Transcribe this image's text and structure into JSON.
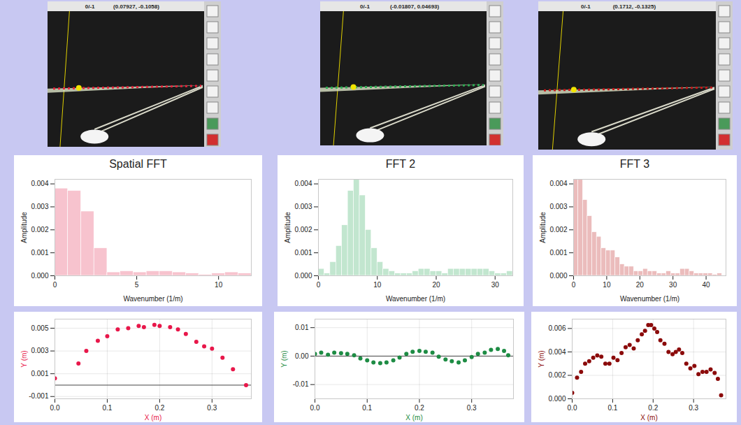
{
  "screenshots": [
    {
      "status": "0/-1",
      "cursor": "(0.07927, -0.1058)"
    },
    {
      "status": "0/-1",
      "cursor": "(-0.01807, 0.04693)"
    },
    {
      "status": "0/-1",
      "cursor": "(0.1712, -0.1325)"
    }
  ],
  "chart_data": [
    {
      "type": "histogram",
      "title": "Spatial FFT",
      "x_label": "Wavenumber (1/m)",
      "y_label": "Amplitude",
      "color": "#f7c3ce",
      "bins": [
        0,
        0.8,
        1.6,
        2.4,
        3.2,
        4,
        4.8,
        5.6,
        6.4,
        7.2,
        8,
        8.8,
        9.6,
        10.4,
        11.2,
        12
      ],
      "values": [
        0.0038,
        0.0037,
        0.0028,
        0.0012,
        0.00015,
        0.0002,
        0.00015,
        0.0002,
        0.0002,
        0.00015,
        0.0001,
        5e-05,
        0.0001,
        0.00015,
        0.0001
      ],
      "xlim": [
        0,
        12
      ],
      "xticks": [
        0,
        5,
        10
      ],
      "ylim": [
        0,
        0.0042
      ],
      "yticks": [
        {
          "value": 0,
          "label": "0.000"
        },
        0.001,
        0.002,
        0.003,
        0.004
      ]
    },
    {
      "type": "histogram",
      "title": "FFT 2",
      "x_label": "Wavenumber (1/m)",
      "y_label": "Amplitude",
      "color": "#c2e6cf",
      "bins": [
        0,
        1,
        2,
        3,
        4,
        5,
        6,
        7,
        8,
        9,
        10,
        11,
        12,
        13,
        14,
        15,
        16,
        17,
        18,
        19,
        20,
        21,
        22,
        23,
        24,
        25,
        26,
        27,
        28,
        29,
        30,
        31,
        32,
        33
      ],
      "values": [
        0.0003,
        0.0001,
        0.0006,
        0.0013,
        0.0022,
        0.0037,
        0.0042,
        0.0035,
        0.002,
        0.0012,
        0.0006,
        0.0003,
        0.0002,
        0.0001,
        0.0001,
        0.0001,
        0.0002,
        0.0003,
        0.0003,
        0.0002,
        0.0002,
        0.0001,
        0.0003,
        0.0003,
        0.0003,
        0.0003,
        0.0003,
        0.0003,
        0.0003,
        0.0002,
        0.0001,
        0.0001,
        0.0002
      ],
      "xlim": [
        0,
        33
      ],
      "xticks": [
        0,
        10,
        20,
        30
      ],
      "ylim": [
        0,
        0.0042
      ],
      "yticks": [
        {
          "value": 0,
          "label": "0.000"
        },
        0.001,
        0.002,
        0.003,
        0.004
      ]
    },
    {
      "type": "histogram",
      "title": "FFT 3",
      "x_label": "Wavenumber (1/m)",
      "y_label": "Amplitude",
      "color": "#ebbcbc",
      "bins": [
        0,
        1.4,
        2.8,
        4.2,
        5.6,
        7,
        8.4,
        9.8,
        11.2,
        12.6,
        14,
        15.4,
        16.8,
        18.2,
        19.6,
        21,
        22.4,
        23.8,
        25.2,
        26.6,
        28,
        29.4,
        30.8,
        32.2,
        33.6,
        35,
        36.4,
        37.8,
        39.2,
        40.6,
        42,
        43.4,
        44.8
      ],
      "values": [
        0.0042,
        0.0042,
        0.0033,
        0.0026,
        0.0019,
        0.0017,
        0.0012,
        0.0011,
        0.0011,
        0.0008,
        0.0005,
        0.0004,
        0.0004,
        0.0002,
        0.0002,
        0.0003,
        0.0002,
        0.0002,
        0.0001,
        0.0001,
        0.0002,
        0.0001,
        0.0001,
        0.0003,
        0.0003,
        0.0002,
        0.0001,
        0.0001,
        0.0001,
        0.0001,
        5e-05,
        0.0001
      ],
      "xlim": [
        0,
        46
      ],
      "xticks": [
        0,
        10,
        20,
        30,
        40
      ],
      "ylim": [
        0,
        0.0042
      ],
      "yticks": [
        {
          "value": 0,
          "label": "0.000"
        },
        0.001,
        0.002,
        0.003,
        0.004
      ]
    },
    {
      "type": "scatter",
      "x_label": "X (m)",
      "y_label": "Y (m)",
      "color": "#e8174a",
      "grid": true,
      "reference_y": 0,
      "x": [
        0,
        0.045,
        0.06,
        0.082,
        0.1,
        0.12,
        0.14,
        0.16,
        0.17,
        0.19,
        0.2,
        0.22,
        0.235,
        0.25,
        0.27,
        0.285,
        0.3,
        0.32,
        0.34,
        0.365
      ],
      "values": [
        0.0006,
        0.0019,
        0.003,
        0.0039,
        0.0043,
        0.0049,
        0.005,
        0.0052,
        0.0051,
        0.0053,
        0.0052,
        0.0051,
        0.0049,
        0.0045,
        0.0038,
        0.0034,
        0.0032,
        0.0024,
        0.0014,
        0.0
      ],
      "xlim": [
        0,
        0.375
      ],
      "xticks": [
        {
          "value": 0,
          "label": "0.0"
        },
        0.1,
        0.2,
        0.3
      ],
      "ylim": [
        -0.0012,
        0.0058
      ],
      "yticks": [
        -0.001,
        0.001,
        0.003,
        0.005
      ]
    },
    {
      "type": "scatter",
      "x_label": "X (m)",
      "y_label": "Y (m)",
      "color": "#1e8c44",
      "grid": true,
      "reference_y": 0,
      "x": [
        0,
        0.012,
        0.025,
        0.037,
        0.05,
        0.062,
        0.075,
        0.087,
        0.1,
        0.112,
        0.125,
        0.137,
        0.15,
        0.162,
        0.175,
        0.187,
        0.2,
        0.212,
        0.225,
        0.237,
        0.25,
        0.262,
        0.275,
        0.287,
        0.3,
        0.312,
        0.325,
        0.337,
        0.35,
        0.362,
        0.37
      ],
      "values": [
        0.0008,
        0.0012,
        0.0005,
        0.0012,
        0.001,
        0.0008,
        0.0003,
        -0.0008,
        -0.0015,
        -0.0022,
        -0.0025,
        -0.0022,
        -0.0015,
        -0.0005,
        0.0008,
        0.0015,
        0.0018,
        0.0015,
        0.0012,
        -0.0002,
        -0.0012,
        -0.0018,
        -0.0022,
        -0.0015,
        -0.0003,
        0.0008,
        0.0012,
        0.0022,
        0.0025,
        0.0018,
        0.0003
      ],
      "xlim": [
        0,
        0.38
      ],
      "xticks": [
        {
          "value": 0,
          "label": "0.0"
        },
        0.1,
        0.2,
        0.3
      ],
      "ylim": [
        -0.015,
        0.013
      ],
      "yticks": [
        -0.01,
        {
          "value": 0,
          "label": "0.00"
        },
        0.01
      ]
    },
    {
      "type": "scatter",
      "x_label": "X (m)",
      "y_label": "Y (m)",
      "color": "#8b0a0a",
      "grid": true,
      "x": [
        0,
        0.012,
        0.022,
        0.032,
        0.042,
        0.052,
        0.062,
        0.072,
        0.082,
        0.092,
        0.102,
        0.112,
        0.122,
        0.132,
        0.142,
        0.152,
        0.162,
        0.172,
        0.18,
        0.188,
        0.195,
        0.203,
        0.21,
        0.218,
        0.228,
        0.238,
        0.248,
        0.256,
        0.264,
        0.272,
        0.282,
        0.292,
        0.302,
        0.312,
        0.322,
        0.332,
        0.342,
        0.352,
        0.36,
        0.368
      ],
      "values": [
        0.0005,
        0.0018,
        0.0023,
        0.003,
        0.0032,
        0.0035,
        0.0037,
        0.0036,
        0.003,
        0.003,
        0.0035,
        0.0033,
        0.0039,
        0.0044,
        0.0046,
        0.0043,
        0.005,
        0.0055,
        0.0058,
        0.0063,
        0.0063,
        0.006,
        0.0057,
        0.005,
        0.0047,
        0.004,
        0.0038,
        0.004,
        0.0042,
        0.0039,
        0.003,
        0.0026,
        0.0028,
        0.0021,
        0.0023,
        0.0023,
        0.0025,
        0.0022,
        0.0017,
        0.0003
      ],
      "xlim": [
        0,
        0.38
      ],
      "xticks": [
        {
          "value": 0,
          "label": "0.0"
        },
        0.1,
        0.2,
        0.3
      ],
      "ylim": [
        0,
        0.0068
      ],
      "yticks": [
        {
          "value": 0,
          "label": "0.000"
        },
        0.002,
        0.004,
        0.006
      ]
    }
  ]
}
